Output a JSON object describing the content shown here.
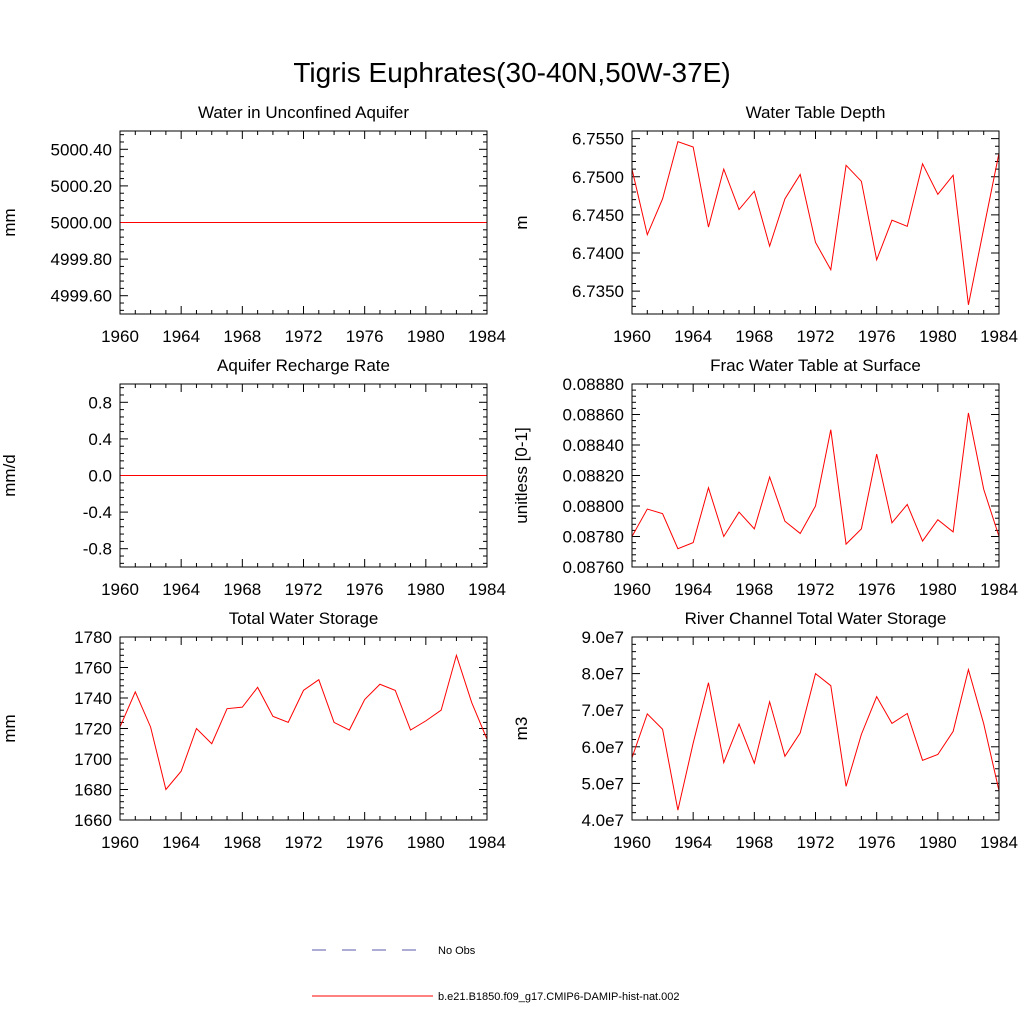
{
  "figure_title": "Tigris Euphrates(30-40N,50W-37E)",
  "legend": {
    "entries": [
      {
        "label": "No Obs",
        "color": "#5a5aa8",
        "style": "dashed"
      },
      {
        "label": "b.e21.B1850.f09_g17.CMIP6-DAMIP-hist-nat.002",
        "color": "#ff0000",
        "style": "solid"
      }
    ]
  },
  "chart_data": [
    {
      "type": "line",
      "title": "Water in Unconfined Aquifer",
      "ylabel": "mm",
      "xlim": [
        1960,
        1984
      ],
      "ylim": [
        4999.5,
        5000.5
      ],
      "xticks": [
        "1960",
        "1964",
        "1968",
        "1972",
        "1976",
        "1980",
        "1984"
      ],
      "yticks": [
        "4999.60",
        "4999.80",
        "5000.00",
        "5000.20",
        "5000.40"
      ],
      "x": [
        1960,
        1961,
        1962,
        1963,
        1964,
        1965,
        1966,
        1967,
        1968,
        1969,
        1970,
        1971,
        1972,
        1973,
        1974,
        1975,
        1976,
        1977,
        1978,
        1979,
        1980,
        1981,
        1982,
        1983,
        1984
      ],
      "series": [
        {
          "color": "#ff0000",
          "values": [
            5000,
            5000,
            5000,
            5000,
            5000,
            5000,
            5000,
            5000,
            5000,
            5000,
            5000,
            5000,
            5000,
            5000,
            5000,
            5000,
            5000,
            5000,
            5000,
            5000,
            5000,
            5000,
            5000,
            5000,
            5000
          ]
        }
      ]
    },
    {
      "type": "line",
      "title": "Water Table Depth",
      "ylabel": "m",
      "xlim": [
        1960,
        1984
      ],
      "ylim": [
        6.732,
        6.756
      ],
      "xticks": [
        "1960",
        "1964",
        "1968",
        "1972",
        "1976",
        "1980",
        "1984"
      ],
      "yticks": [
        "6.7350",
        "6.7400",
        "6.7450",
        "6.7500",
        "6.7550"
      ],
      "x": [
        1960,
        1961,
        1962,
        1963,
        1964,
        1965,
        1966,
        1967,
        1968,
        1969,
        1970,
        1971,
        1972,
        1973,
        1974,
        1975,
        1976,
        1977,
        1978,
        1979,
        1980,
        1981,
        1982,
        1983,
        1984
      ],
      "series": [
        {
          "color": "#ff0000",
          "values": [
            6.751,
            6.7424,
            6.7471,
            6.7546,
            6.7539,
            6.7434,
            6.751,
            6.7457,
            6.7481,
            6.7409,
            6.7471,
            6.7503,
            6.7414,
            6.7378,
            6.7515,
            6.7494,
            6.7391,
            6.7443,
            6.7435,
            6.7517,
            6.7477,
            6.7502,
            6.7332,
            6.7432,
            6.7531
          ]
        }
      ]
    },
    {
      "type": "line",
      "title": "Aquifer Recharge Rate",
      "ylabel": "mm/d",
      "xlim": [
        1960,
        1984
      ],
      "ylim": [
        -1.0,
        1.0
      ],
      "xticks": [
        "1960",
        "1964",
        "1968",
        "1972",
        "1976",
        "1980",
        "1984"
      ],
      "yticks": [
        "-0.8",
        "-0.4",
        "0.0",
        "0.4",
        "0.8"
      ],
      "x": [
        1960,
        1961,
        1962,
        1963,
        1964,
        1965,
        1966,
        1967,
        1968,
        1969,
        1970,
        1971,
        1972,
        1973,
        1974,
        1975,
        1976,
        1977,
        1978,
        1979,
        1980,
        1981,
        1982,
        1983,
        1984
      ],
      "series": [
        {
          "color": "#ff0000",
          "values": [
            0,
            0,
            0,
            0,
            0,
            0,
            0,
            0,
            0,
            0,
            0,
            0,
            0,
            0,
            0,
            0,
            0,
            0,
            0,
            0,
            0,
            0,
            0,
            0,
            0
          ]
        }
      ]
    },
    {
      "type": "line",
      "title": "Frac Water Table at Surface",
      "ylabel": "unitless [0-1]",
      "xlim": [
        1960,
        1984
      ],
      "ylim": [
        0.0876,
        0.0888
      ],
      "xticks": [
        "1960",
        "1964",
        "1968",
        "1972",
        "1976",
        "1980",
        "1984"
      ],
      "yticks": [
        "0.08760",
        "0.08780",
        "0.08800",
        "0.08820",
        "0.08840",
        "0.08860",
        "0.08880"
      ],
      "x": [
        1960,
        1961,
        1962,
        1963,
        1964,
        1965,
        1966,
        1967,
        1968,
        1969,
        1970,
        1971,
        1972,
        1973,
        1974,
        1975,
        1976,
        1977,
        1978,
        1979,
        1980,
        1981,
        1982,
        1983,
        1984
      ],
      "series": [
        {
          "color": "#ff0000",
          "values": [
            0.0878,
            0.08798,
            0.08795,
            0.08772,
            0.08776,
            0.08812,
            0.0878,
            0.08796,
            0.08785,
            0.08819,
            0.0879,
            0.08782,
            0.088,
            0.0885,
            0.08775,
            0.08785,
            0.08834,
            0.08789,
            0.08801,
            0.08777,
            0.08791,
            0.08783,
            0.08861,
            0.08811,
            0.0878
          ]
        }
      ]
    },
    {
      "type": "line",
      "title": "Total Water Storage",
      "ylabel": "mm",
      "xlim": [
        1960,
        1984
      ],
      "ylim": [
        1660,
        1780
      ],
      "xticks": [
        "1960",
        "1964",
        "1968",
        "1972",
        "1976",
        "1980",
        "1984"
      ],
      "yticks": [
        "1660",
        "1680",
        "1700",
        "1720",
        "1740",
        "1760",
        "1780"
      ],
      "x": [
        1960,
        1961,
        1962,
        1963,
        1964,
        1965,
        1966,
        1967,
        1968,
        1969,
        1970,
        1971,
        1972,
        1973,
        1974,
        1975,
        1976,
        1977,
        1978,
        1979,
        1980,
        1981,
        1982,
        1983,
        1984
      ],
      "series": [
        {
          "color": "#ff0000",
          "values": [
            1721,
            1744,
            1721,
            1680,
            1692,
            1720,
            1710,
            1733,
            1734,
            1747,
            1728,
            1724,
            1745,
            1752,
            1724,
            1719,
            1739,
            1749,
            1745,
            1719,
            1725,
            1732,
            1768,
            1737,
            1713
          ]
        }
      ]
    },
    {
      "type": "line",
      "title": "River Channel Total Water Storage",
      "ylabel": "m3",
      "xlim": [
        1960,
        1984
      ],
      "ylim": [
        40000000,
        90000000
      ],
      "xticks": [
        "1960",
        "1964",
        "1968",
        "1972",
        "1976",
        "1980",
        "1984"
      ],
      "yticks": [
        "4.0e7",
        "5.0e7",
        "6.0e7",
        "7.0e7",
        "8.0e7",
        "9.0e7"
      ],
      "x": [
        1960,
        1961,
        1962,
        1963,
        1964,
        1965,
        1966,
        1967,
        1968,
        1969,
        1970,
        1971,
        1972,
        1973,
        1974,
        1975,
        1976,
        1977,
        1978,
        1979,
        1980,
        1981,
        1982,
        1983,
        1984
      ],
      "series": [
        {
          "color": "#ff0000",
          "values": [
            57000000,
            69000000,
            64800000,
            42700000,
            61000000,
            77500000,
            55700000,
            66200000,
            55500000,
            72300000,
            57400000,
            63800000,
            80000000,
            76700000,
            49200000,
            63400000,
            73700000,
            66400000,
            69100000,
            56300000,
            57900000,
            64200000,
            81100000,
            66300000,
            48000000
          ]
        }
      ]
    }
  ]
}
